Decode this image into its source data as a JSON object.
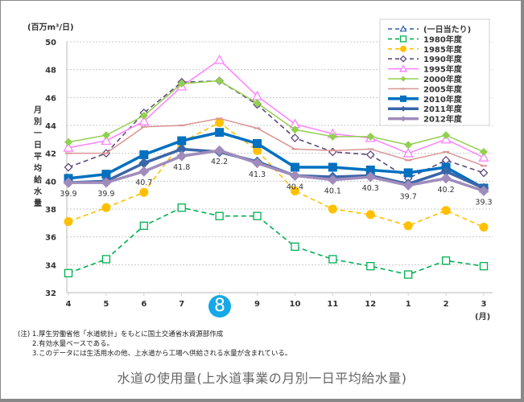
{
  "chart_data": {
    "type": "line",
    "title": "水道の使用量(上水道事業の月別一日平均給水量)",
    "unit_label": "(百万m³/日)",
    "ylabel": "月別一日平均給水量",
    "xlabel": "(月)",
    "x": [
      "4",
      "5",
      "6",
      "7",
      "8",
      "9",
      "10",
      "11",
      "12",
      "1",
      "2",
      "3"
    ],
    "highlighted_x": "8",
    "ylim": [
      32,
      50
    ],
    "yticks": [
      32,
      34,
      36,
      38,
      40,
      42,
      44,
      46,
      48,
      50
    ],
    "grid": true,
    "legend_position": "top-right",
    "legend_header": "(一日当たり)",
    "series": [
      {
        "name": "1980年度",
        "color": "#00b050",
        "style": "dashed",
        "marker": "square-open",
        "values": [
          33.4,
          34.4,
          36.8,
          38.1,
          37.5,
          37.5,
          35.3,
          34.4,
          33.9,
          33.3,
          34.3,
          33.9
        ]
      },
      {
        "name": "1985年度",
        "color": "#ffc000",
        "style": "dashed",
        "marker": "circle",
        "values": [
          37.1,
          38.1,
          39.2,
          42.8,
          44.2,
          42.2,
          39.3,
          38.0,
          37.6,
          36.8,
          37.9,
          36.7
        ]
      },
      {
        "name": "1990年度",
        "color": "#604a7b",
        "style": "dashed",
        "marker": "diamond-open",
        "values": [
          41.0,
          42.0,
          44.9,
          47.1,
          47.2,
          45.5,
          43.1,
          42.1,
          41.9,
          40.2,
          41.5,
          40.6
        ]
      },
      {
        "name": "1995年度",
        "color": "#ff80ff",
        "style": "solid",
        "marker": "triangle-open",
        "values": [
          42.4,
          42.9,
          44.3,
          46.8,
          48.7,
          46.1,
          44.1,
          43.4,
          43.1,
          42.0,
          43.0,
          41.7
        ]
      },
      {
        "name": "2000年度",
        "color": "#92d050",
        "style": "solid",
        "marker": "diamond",
        "values": [
          42.8,
          43.3,
          44.7,
          47.0,
          47.2,
          45.6,
          43.7,
          43.2,
          43.2,
          42.6,
          43.3,
          42.1
        ]
      },
      {
        "name": "2005年度",
        "color": "#d99594",
        "style": "solid",
        "marker": "dash",
        "values": [
          42.0,
          42.0,
          43.9,
          44.0,
          44.5,
          43.8,
          42.3,
          42.2,
          42.3,
          41.5,
          42.1,
          41.1
        ]
      },
      {
        "name": "2010年度",
        "color": "#0070c0",
        "style": "thick",
        "marker": "square",
        "values": [
          40.2,
          40.5,
          41.9,
          42.9,
          43.5,
          42.7,
          41.0,
          41.0,
          40.8,
          40.6,
          41.0,
          39.5
        ]
      },
      {
        "name": "2011年度",
        "color": "#3a66a8",
        "style": "thick",
        "marker": "diamond",
        "values": [
          39.9,
          40.0,
          41.3,
          42.3,
          42.1,
          41.4,
          40.4,
          40.3,
          40.4,
          39.8,
          40.7,
          39.5
        ]
      },
      {
        "name": "2012年度",
        "color": "#a08cbc",
        "style": "thick",
        "marker": "diamond",
        "values": [
          39.9,
          39.9,
          40.7,
          41.8,
          42.2,
          41.3,
          40.4,
          40.1,
          40.3,
          39.7,
          40.2,
          39.3
        ],
        "data_labels": [
          "39.9",
          "39.9",
          "40.7",
          "41.8",
          "42.2",
          "41.3",
          "40.4",
          "40.1",
          "40.3",
          "39.7",
          "40.2",
          "39.3"
        ]
      }
    ]
  },
  "notes": [
    "(注) 1.厚生労働省他「水道統計」をもとに国土交通省水資源部作成",
    "2.有効水量ベースである。",
    "3.このデータには生活用水の他、上水道から工場へ供給される水量が含まれている。"
  ],
  "caption": "水道の使用量(上水道事業の月別一日平均給水量)",
  "badge": "8"
}
